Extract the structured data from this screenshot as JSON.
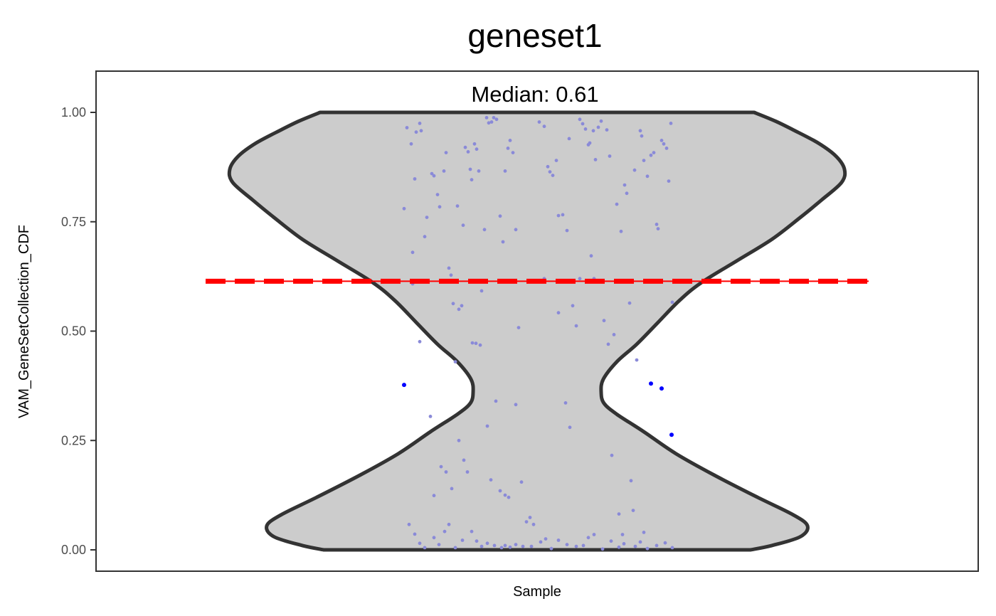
{
  "chart_data": {
    "type": "violin",
    "title": "geneset1",
    "subtitle": "Median: 0.61",
    "xlabel": "Sample",
    "ylabel": "VAM_GeneSetCollection_CDF",
    "ylim": [
      -0.05,
      1.095
    ],
    "yticks": [
      0.0,
      0.25,
      0.5,
      0.75,
      1.0
    ],
    "ytick_labels": [
      "0.00",
      "0.25",
      "0.50",
      "0.75",
      "1.00"
    ],
    "median": 0.614,
    "colors": {
      "violin_fill": "#cccccc",
      "violin_stroke": "#333333",
      "median_line": "#ff0000",
      "points": "#8a8ad8",
      "outlier_points": "#0000ff",
      "panel_border": "#333333"
    },
    "violin_half_width": [
      [
        0.0,
        0.3
      ],
      [
        0.01,
        0.33
      ],
      [
        0.03,
        0.37
      ],
      [
        0.055,
        0.38
      ],
      [
        0.08,
        0.36
      ],
      [
        0.12,
        0.31
      ],
      [
        0.17,
        0.25
      ],
      [
        0.22,
        0.195
      ],
      [
        0.27,
        0.15
      ],
      [
        0.31,
        0.112
      ],
      [
        0.335,
        0.094
      ],
      [
        0.36,
        0.09
      ],
      [
        0.39,
        0.093
      ],
      [
        0.43,
        0.112
      ],
      [
        0.47,
        0.14
      ],
      [
        0.52,
        0.17
      ],
      [
        0.57,
        0.2
      ],
      [
        0.61,
        0.23
      ],
      [
        0.66,
        0.28
      ],
      [
        0.71,
        0.33
      ],
      [
        0.76,
        0.37
      ],
      [
        0.8,
        0.4
      ],
      [
        0.84,
        0.428
      ],
      [
        0.87,
        0.432
      ],
      [
        0.9,
        0.42
      ],
      [
        0.93,
        0.395
      ],
      [
        0.96,
        0.36
      ],
      [
        0.98,
        0.335
      ],
      [
        1.0,
        0.305
      ]
    ],
    "outliers": [
      {
        "x": -0.187,
        "y": 0.377
      },
      {
        "x": 0.16,
        "y": 0.38
      },
      {
        "x": 0.175,
        "y": 0.369
      },
      {
        "x": 0.189,
        "y": 0.263
      }
    ],
    "jitter_points": [
      [
        -0.187,
        0.78
      ],
      [
        -0.183,
        0.965
      ],
      [
        -0.177,
        0.928
      ],
      [
        -0.175,
        0.68
      ],
      [
        -0.172,
        0.848
      ],
      [
        -0.17,
        0.955
      ],
      [
        -0.165,
        0.975
      ],
      [
        -0.163,
        0.958
      ],
      [
        -0.158,
        0.716
      ],
      [
        -0.155,
        0.76
      ],
      [
        -0.148,
        0.86
      ],
      [
        -0.145,
        0.855
      ],
      [
        -0.14,
        0.812
      ],
      [
        -0.137,
        0.784
      ],
      [
        -0.131,
        0.866
      ],
      [
        -0.128,
        0.908
      ],
      [
        -0.124,
        0.644
      ],
      [
        -0.121,
        0.628
      ],
      [
        -0.118,
        0.563
      ],
      [
        -0.112,
        0.786
      ],
      [
        -0.11,
        0.55
      ],
      [
        -0.106,
        0.558
      ],
      [
        -0.104,
        0.742
      ],
      [
        -0.101,
        0.92
      ],
      [
        -0.097,
        0.91
      ],
      [
        -0.094,
        0.87
      ],
      [
        -0.092,
        0.846
      ],
      [
        -0.088,
        0.928
      ],
      [
        -0.085,
        0.916
      ],
      [
        -0.082,
        0.866
      ],
      [
        -0.078,
        0.592
      ],
      [
        -0.074,
        0.732
      ],
      [
        -0.071,
        0.988
      ],
      [
        -0.068,
        0.976
      ],
      [
        -0.064,
        0.978
      ],
      [
        -0.061,
        0.988
      ],
      [
        -0.057,
        0.984
      ],
      [
        -0.052,
        0.763
      ],
      [
        -0.048,
        0.704
      ],
      [
        -0.045,
        0.866
      ],
      [
        -0.041,
        0.918
      ],
      [
        -0.038,
        0.936
      ],
      [
        -0.034,
        0.908
      ],
      [
        -0.03,
        0.732
      ],
      [
        -0.026,
        0.508
      ],
      [
        -0.175,
        0.608
      ],
      [
        -0.165,
        0.476
      ],
      [
        -0.15,
        0.305
      ],
      [
        -0.145,
        0.124
      ],
      [
        -0.135,
        0.19
      ],
      [
        -0.128,
        0.178
      ],
      [
        -0.12,
        0.14
      ],
      [
        -0.115,
        0.43
      ],
      [
        -0.11,
        0.25
      ],
      [
        -0.103,
        0.205
      ],
      [
        -0.098,
        0.178
      ],
      [
        -0.091,
        0.473
      ],
      [
        -0.086,
        0.472
      ],
      [
        -0.08,
        0.468
      ],
      [
        -0.07,
        0.283
      ],
      [
        -0.065,
        0.16
      ],
      [
        -0.058,
        0.34
      ],
      [
        -0.052,
        0.135
      ],
      [
        -0.045,
        0.125
      ],
      [
        -0.04,
        0.12
      ],
      [
        -0.03,
        0.332
      ],
      [
        -0.022,
        0.155
      ],
      [
        -0.015,
        0.064
      ],
      [
        -0.01,
        0.074
      ],
      [
        -0.005,
        0.058
      ],
      [
        0.003,
        0.978
      ],
      [
        0.01,
        0.968
      ],
      [
        0.015,
        0.876
      ],
      [
        0.018,
        0.864
      ],
      [
        0.022,
        0.856
      ],
      [
        0.027,
        0.89
      ],
      [
        0.03,
        0.764
      ],
      [
        0.036,
        0.766
      ],
      [
        0.042,
        0.73
      ],
      [
        0.045,
        0.94
      ],
      [
        0.05,
        0.558
      ],
      [
        0.055,
        0.512
      ],
      [
        0.06,
        0.984
      ],
      [
        0.064,
        0.974
      ],
      [
        0.068,
        0.962
      ],
      [
        0.072,
        0.926
      ],
      [
        0.074,
        0.93
      ],
      [
        0.076,
        0.672
      ],
      [
        0.079,
        0.958
      ],
      [
        0.082,
        0.892
      ],
      [
        0.086,
        0.966
      ],
      [
        0.09,
        0.98
      ],
      [
        0.094,
        0.524
      ],
      [
        0.098,
        0.96
      ],
      [
        0.102,
        0.9
      ],
      [
        0.108,
        0.492
      ],
      [
        0.112,
        0.79
      ],
      [
        0.118,
        0.728
      ],
      [
        0.123,
        0.834
      ],
      [
        0.126,
        0.815
      ],
      [
        0.13,
        0.564
      ],
      [
        0.132,
        0.158
      ],
      [
        0.137,
        0.868
      ],
      [
        0.14,
        0.434
      ],
      [
        0.145,
        0.958
      ],
      [
        0.147,
        0.946
      ],
      [
        0.15,
        0.89
      ],
      [
        0.155,
        0.854
      ],
      [
        0.16,
        0.902
      ],
      [
        0.164,
        0.908
      ],
      [
        0.168,
        0.744
      ],
      [
        0.17,
        0.734
      ],
      [
        0.175,
        0.936
      ],
      [
        0.178,
        0.928
      ],
      [
        0.182,
        0.918
      ],
      [
        0.185,
        0.843
      ],
      [
        0.188,
        0.975
      ],
      [
        0.19,
        0.566
      ],
      [
        0.01,
        0.62
      ],
      [
        0.03,
        0.542
      ],
      [
        0.04,
        0.336
      ],
      [
        0.046,
        0.28
      ],
      [
        0.06,
        0.62
      ],
      [
        0.08,
        0.62
      ],
      [
        0.1,
        0.47
      ],
      [
        0.105,
        0.216
      ],
      [
        0.115,
        0.082
      ],
      [
        0.12,
        0.035
      ],
      [
        0.135,
        0.09
      ],
      [
        0.15,
        0.04
      ],
      [
        -0.18,
        0.058
      ],
      [
        -0.172,
        0.036
      ],
      [
        -0.165,
        0.015
      ],
      [
        -0.158,
        0.005
      ],
      [
        -0.145,
        0.028
      ],
      [
        -0.138,
        0.012
      ],
      [
        -0.13,
        0.042
      ],
      [
        -0.124,
        0.058
      ],
      [
        -0.115,
        0.005
      ],
      [
        -0.105,
        0.022
      ],
      [
        -0.092,
        0.042
      ],
      [
        -0.085,
        0.02
      ],
      [
        -0.078,
        0.008
      ],
      [
        -0.07,
        0.015
      ],
      [
        -0.06,
        0.01
      ],
      [
        -0.05,
        0.005
      ],
      [
        -0.045,
        0.01
      ],
      [
        -0.038,
        0.006
      ],
      [
        -0.03,
        0.012
      ],
      [
        -0.02,
        0.008
      ],
      [
        -0.008,
        0.008
      ],
      [
        0.005,
        0.018
      ],
      [
        0.012,
        0.025
      ],
      [
        0.02,
        0.003
      ],
      [
        0.03,
        0.022
      ],
      [
        0.042,
        0.012
      ],
      [
        0.055,
        0.008
      ],
      [
        0.065,
        0.01
      ],
      [
        0.072,
        0.028
      ],
      [
        0.08,
        0.035
      ],
      [
        0.092,
        0.002
      ],
      [
        0.104,
        0.02
      ],
      [
        0.115,
        0.006
      ],
      [
        0.122,
        0.014
      ],
      [
        0.138,
        0.008
      ],
      [
        0.145,
        0.018
      ],
      [
        0.155,
        0.003
      ],
      [
        0.168,
        0.01
      ],
      [
        0.18,
        0.016
      ],
      [
        0.19,
        0.005
      ]
    ]
  }
}
